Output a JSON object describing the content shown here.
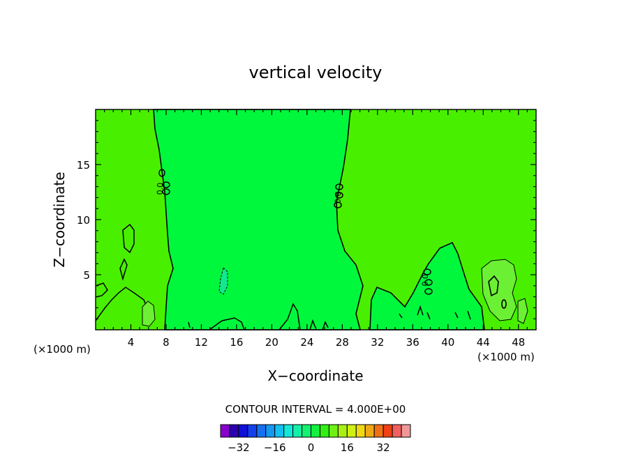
{
  "chart_data": {
    "type": "contour",
    "title": "vertical velocity",
    "xlabel": "X−coordinate",
    "ylabel": "Z−coordinate",
    "x_unit_left": "(×1000 m)",
    "x_unit_right": "(×1000 m)",
    "xlim": [
      0,
      50
    ],
    "ylim": [
      0,
      20
    ],
    "x_ticks": [
      4,
      8,
      12,
      16,
      20,
      24,
      28,
      32,
      36,
      40,
      44,
      48
    ],
    "y_ticks": [
      5,
      10,
      15
    ],
    "contour_interval_text": "CONTOUR INTERVAL =  4.000E+00",
    "contour_labels": [
      {
        "x": 7.6,
        "y": 12.8,
        "text": "0.0"
      },
      {
        "x": 27.8,
        "y": 12.0,
        "text": "0.0"
      },
      {
        "x": 37.7,
        "y": 4.5,
        "text": "0.0"
      }
    ],
    "colorbar": {
      "colors": [
        "#8800cc",
        "#2a00b0",
        "#1010d8",
        "#1440f0",
        "#1470f0",
        "#1498f0",
        "#14c0f0",
        "#14e8d8",
        "#14f0a8",
        "#14f070",
        "#14f040",
        "#30f014",
        "#70f014",
        "#a8f014",
        "#d0f014",
        "#f0d814",
        "#f0a814",
        "#f07014",
        "#f04014",
        "#f06060",
        "#f09898"
      ],
      "tick_labels": [
        "−32",
        "−16",
        "0",
        "16",
        "32"
      ]
    },
    "regions": [
      {
        "level": "0 to 4",
        "color": "#00f83c",
        "desc": "central updraft-free column and lower right lobe"
      },
      {
        "level": "-4 to 0",
        "color": "#48f000",
        "desc": "background"
      },
      {
        "level": "4 to 8",
        "color": "#6cf034",
        "desc": "small positive cells near x=6 and x=45-48"
      },
      {
        "level": "-8 to -4",
        "color": "#10e890",
        "desc": "small cell near x=14.5, z=4"
      }
    ]
  }
}
